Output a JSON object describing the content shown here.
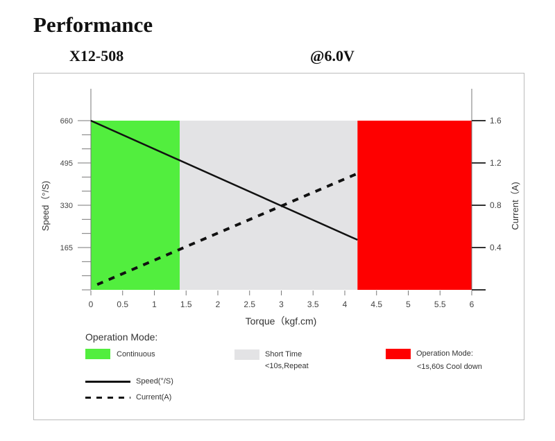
{
  "header": {
    "title": "Performance",
    "model": "X12-508",
    "voltage": "@6.0V"
  },
  "chart_data": {
    "type": "line",
    "xlabel": "Torque（kgf.cm)",
    "ylabel": "Speed（°/S)",
    "y2label": "Current（A)",
    "xlim": [
      0,
      6
    ],
    "ylim": [
      0,
      660
    ],
    "y2lim": [
      0,
      1.6
    ],
    "x_ticks": [
      "0",
      "0.5",
      "1",
      "1.5",
      "2",
      "2.5",
      "3",
      "3.5",
      "4",
      "4.5",
      "5",
      "5.5",
      "6"
    ],
    "y_ticks": [
      "165",
      "330",
      "495",
      "660"
    ],
    "y2_ticks": [
      "0.4",
      "0.8",
      "1.2",
      "1.6"
    ],
    "regions": [
      {
        "name": "Continuous",
        "from": 0,
        "to": 1.4,
        "color": "#52ee3e"
      },
      {
        "name": "Short Time",
        "from": 1.4,
        "to": 4.2,
        "color": "#e3e3e5"
      },
      {
        "name": "Operation Mode",
        "from": 4.2,
        "to": 6,
        "color": "#fe0000"
      }
    ],
    "series": [
      {
        "name": "Speed(°/S)",
        "axis": "left",
        "style": "solid",
        "x": [
          0,
          4.2
        ],
        "values": [
          660,
          195
        ]
      },
      {
        "name": "Current(A)",
        "axis": "right",
        "style": "dashed",
        "x": [
          0.1,
          4.2
        ],
        "values": [
          0.05,
          1.1
        ]
      }
    ]
  },
  "legend": {
    "title": "Operation Mode:",
    "continuous": "Continuous",
    "short_time": "Short Time",
    "short_time_note": "<10s,Repeat",
    "op_mode": "Operation Mode:",
    "op_mode_note": "<1s,60s Cool down",
    "speed": "Speed(°/S)",
    "current": "Current(A)"
  }
}
